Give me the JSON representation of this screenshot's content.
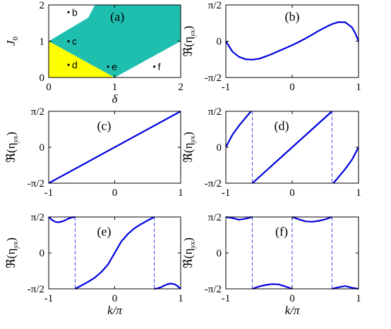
{
  "chart_data": [
    {
      "id": "a",
      "type": "area",
      "panel_label": "(a)",
      "xlabel": "δ",
      "ylabel": "J0",
      "xlim": [
        0,
        2
      ],
      "ylim": [
        0,
        2
      ],
      "xticks": [
        "0",
        "1",
        "2"
      ],
      "yticks": [
        "0",
        "1",
        "2"
      ],
      "regions": [
        {
          "color": "#ffff00",
          "polygon": [
            [
              0,
              0
            ],
            [
              1,
              0
            ],
            [
              0,
              1
            ]
          ]
        },
        {
          "color": "#1fbfb0",
          "polygon": [
            [
              0,
              1
            ],
            [
              1,
              0
            ],
            [
              1.15,
              0.15
            ],
            [
              2,
              1
            ],
            [
              2,
              2
            ],
            [
              0.7,
              2
            ],
            [
              0.6,
              1.65
            ]
          ]
        }
      ],
      "points": [
        {
          "label": "b",
          "x": 0.3,
          "y": 1.8
        },
        {
          "label": "c",
          "x": 0.3,
          "y": 1.0
        },
        {
          "label": "d",
          "x": 0.3,
          "y": 0.35
        },
        {
          "label": "e",
          "x": 0.9,
          "y": 0.3
        },
        {
          "label": "f",
          "x": 1.6,
          "y": 0.3
        }
      ],
      "axis_color": "#000000"
    },
    {
      "id": "b",
      "type": "line",
      "panel_label": "(b)",
      "ylabel": "ℜ(η",
      "ylabel_sub": "yx",
      "xlim": [
        -1,
        1
      ],
      "ylim": [
        -1.5708,
        1.5708
      ],
      "xticks": [
        "-1",
        "0",
        "1"
      ],
      "yticks": [
        "-π/2",
        "0",
        "π/2"
      ],
      "series": [
        {
          "color": "#0000e0",
          "x": [
            -1,
            -0.9,
            -0.8,
            -0.7,
            -0.6,
            -0.5,
            -0.4,
            -0.3,
            -0.2,
            -0.1,
            0,
            0.1,
            0.2,
            0.3,
            0.4,
            0.5,
            0.6,
            0.7,
            0.8,
            0.9,
            0.95,
            1
          ],
          "y": [
            0,
            -0.45,
            -0.68,
            -0.78,
            -0.8,
            -0.76,
            -0.66,
            -0.55,
            -0.42,
            -0.3,
            -0.17,
            -0.03,
            0.12,
            0.28,
            0.45,
            0.6,
            0.74,
            0.83,
            0.82,
            0.6,
            0.35,
            0
          ]
        }
      ],
      "vlines": []
    },
    {
      "id": "c",
      "type": "line",
      "panel_label": "(c)",
      "ylabel": "ℜ(η",
      "ylabel_sub": "yx",
      "xlim": [
        -1,
        1
      ],
      "ylim": [
        -1.5708,
        1.5708
      ],
      "xticks": [
        "-1",
        "0",
        "1"
      ],
      "yticks": [
        "-π/2",
        "0",
        "π/2"
      ],
      "series": [
        {
          "color": "#0000e0",
          "x": [
            -1,
            1
          ],
          "y": [
            -1.5708,
            1.5708
          ]
        }
      ],
      "vlines": []
    },
    {
      "id": "d",
      "type": "line",
      "panel_label": "(d)",
      "ylabel": "ℜ(η",
      "ylabel_sub": "yx",
      "xlim": [
        -1,
        1
      ],
      "ylim": [
        -1.5708,
        1.5708
      ],
      "xticks": [
        "-1",
        "0",
        "1"
      ],
      "yticks": [
        "-π/2",
        "0",
        "π/2"
      ],
      "series": [
        {
          "color": "#0000e0",
          "x": [
            -1,
            -0.9,
            -0.8,
            -0.7,
            -0.62
          ],
          "y": [
            0,
            0.55,
            0.95,
            1.3,
            1.5708
          ]
        },
        {
          "color": "#0000e0",
          "x": [
            -0.6,
            0.6
          ],
          "y": [
            -1.5708,
            1.5708
          ]
        },
        {
          "color": "#0000e0",
          "x": [
            0.62,
            0.7,
            0.8,
            0.9,
            1
          ],
          "y": [
            -1.5708,
            -1.3,
            -0.95,
            -0.55,
            0
          ]
        }
      ],
      "vlines": [
        {
          "x": -0.6,
          "color": "#3333ff"
        },
        {
          "x": 0.6,
          "color": "#3333ff"
        }
      ]
    },
    {
      "id": "e",
      "type": "line",
      "panel_label": "(e)",
      "ylabel": "ℜ(η",
      "ylabel_sub": "yx",
      "xlabel": "k/π",
      "xlim": [
        -1,
        1
      ],
      "ylim": [
        -1.5708,
        1.5708
      ],
      "xticks": [
        "-1",
        "0",
        "1"
      ],
      "yticks": [
        "-π/2",
        "0",
        "π/2"
      ],
      "series": [
        {
          "color": "#0000e0",
          "x": [
            -1,
            -0.95,
            -0.9,
            -0.85,
            -0.8,
            -0.75,
            -0.7,
            -0.65,
            -0.6
          ],
          "y": [
            1.57,
            1.44,
            1.36,
            1.34,
            1.37,
            1.43,
            1.5,
            1.55,
            1.5708
          ]
        },
        {
          "color": "#0000e0",
          "x": [
            -0.6,
            -0.5,
            -0.4,
            -0.3,
            -0.2,
            -0.1,
            0,
            0.1,
            0.2,
            0.3,
            0.4,
            0.5,
            0.6
          ],
          "y": [
            -1.5708,
            -1.42,
            -1.26,
            -1.08,
            -0.83,
            -0.5,
            0,
            0.5,
            0.83,
            1.08,
            1.26,
            1.42,
            1.5708
          ]
        },
        {
          "color": "#0000e0",
          "x": [
            0.6,
            0.65,
            0.7,
            0.75,
            0.8,
            0.85,
            0.9,
            0.95,
            1
          ],
          "y": [
            -1.5708,
            -1.55,
            -1.5,
            -1.43,
            -1.37,
            -1.34,
            -1.36,
            -1.44,
            -1.57
          ]
        }
      ],
      "vlines": [
        {
          "x": -0.6,
          "color": "#3333ff"
        },
        {
          "x": 0.6,
          "color": "#3333ff"
        }
      ]
    },
    {
      "id": "f",
      "type": "line",
      "panel_label": "(f)",
      "ylabel": "ℜ(η",
      "ylabel_sub": "yx",
      "xlabel": "k/π",
      "xlim": [
        -1,
        1
      ],
      "ylim": [
        -1.5708,
        1.5708
      ],
      "xticks": [
        "-1",
        "0",
        "1"
      ],
      "yticks": [
        "-π/2",
        "0",
        "π/2"
      ],
      "series": [
        {
          "color": "#0000e0",
          "x": [
            -1,
            -0.9,
            -0.8,
            -0.7,
            -0.6
          ],
          "y": [
            1.5708,
            1.52,
            1.45,
            1.5,
            1.5708
          ]
        },
        {
          "color": "#0000e0",
          "x": [
            -0.6,
            -0.5,
            -0.4,
            -0.3,
            -0.2,
            -0.1,
            0
          ],
          "y": [
            -1.5708,
            -1.47,
            -1.4,
            -1.36,
            -1.38,
            -1.47,
            -1.5708
          ]
        },
        {
          "color": "#0000e0",
          "x": [
            0,
            0.1,
            0.2,
            0.3,
            0.4,
            0.5,
            0.6
          ],
          "y": [
            1.5708,
            1.47,
            1.38,
            1.36,
            1.4,
            1.47,
            1.5708
          ]
        },
        {
          "color": "#0000e0",
          "x": [
            0.6,
            0.7,
            0.8,
            0.9,
            1
          ],
          "y": [
            -1.5708,
            -1.5,
            -1.45,
            -1.52,
            -1.5708
          ]
        }
      ],
      "vlines": [
        {
          "x": -0.6,
          "color": "#3333ff"
        },
        {
          "x": 0,
          "color": "#3333ff"
        },
        {
          "x": 0.6,
          "color": "#3333ff"
        }
      ]
    }
  ]
}
